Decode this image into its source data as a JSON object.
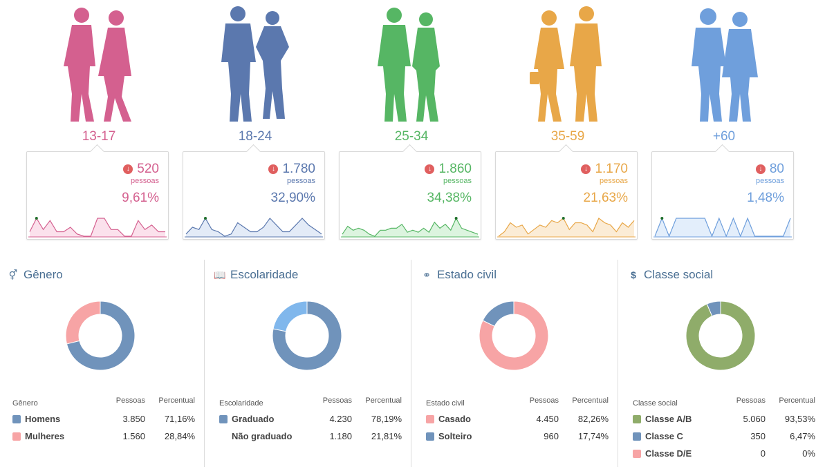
{
  "age_groups": [
    {
      "label": "13-17",
      "count": "520",
      "unit": "pessoas",
      "pct": "9,61%",
      "color": "#d4608f",
      "fill": "#fbe1ec",
      "spark": [
        2,
        8,
        3,
        7,
        2,
        2,
        4,
        1,
        0,
        0,
        8,
        8,
        3,
        3,
        0,
        0,
        7,
        3,
        5,
        2,
        2
      ]
    },
    {
      "label": "18-24",
      "count": "1.780",
      "unit": "pessoas",
      "pct": "32,90%",
      "color": "#5b78ae",
      "fill": "#e3ebf7",
      "spark": [
        1,
        4,
        3,
        8,
        3,
        2,
        0,
        1,
        6,
        4,
        2,
        2,
        4,
        8,
        5,
        2,
        2,
        5,
        8,
        5,
        3,
        1
      ]
    },
    {
      "label": "25-34",
      "count": "1.860",
      "unit": "pessoas",
      "pct": "34,38%",
      "color": "#56b664",
      "fill": "#dcf4df",
      "spark": [
        1,
        5,
        3,
        4,
        3,
        1,
        0,
        3,
        3,
        4,
        4,
        6,
        2,
        3,
        2,
        4,
        2,
        7,
        4,
        6,
        3,
        9,
        4,
        3,
        2,
        1
      ]
    },
    {
      "label": "35-59",
      "count": "1.170",
      "unit": "pessoas",
      "pct": "21,63%",
      "color": "#e8a748",
      "fill": "#fbecd6",
      "spark": [
        0,
        2,
        6,
        4,
        5,
        1,
        3,
        5,
        4,
        7,
        6,
        8,
        3,
        6,
        6,
        5,
        2,
        8,
        6,
        5,
        2,
        6,
        4,
        7
      ]
    },
    {
      "label": "+60",
      "count": "80",
      "unit": "pessoas",
      "pct": "1,48%",
      "color": "#6f9fdc",
      "fill": "#e3eefb",
      "spark": [
        0,
        9,
        0,
        9,
        9,
        9,
        9,
        9,
        0,
        9,
        0,
        9,
        0,
        9,
        0,
        0,
        0,
        0,
        0,
        9
      ]
    }
  ],
  "panels": [
    {
      "title": "Gênero",
      "icon": "gender-icon",
      "icon_glyph": "⚥",
      "col_headers": [
        "Gênero",
        "Pessoas",
        "Percentual"
      ],
      "rows": [
        {
          "label": "Homens",
          "pessoas": "3.850",
          "percentual": "71,16%",
          "value": 71.16,
          "color": "#7093bb"
        },
        {
          "label": "Mulheres",
          "pessoas": "1.560",
          "percentual": "28,84%",
          "value": 28.84,
          "color": "#f7a4a5"
        }
      ]
    },
    {
      "title": "Escolaridade",
      "icon": "book-icon",
      "icon_glyph": "📖",
      "col_headers": [
        "Escolaridade",
        "Pessoas",
        "Percentual"
      ],
      "rows": [
        {
          "label": "Graduado",
          "pessoas": "4.230",
          "percentual": "78,19%",
          "value": 78.19,
          "color": "#7093bb"
        },
        {
          "label": "Não graduado",
          "pessoas": "1.180",
          "percentual": "21,81%",
          "value": 21.81,
          "color": "#80b7ec",
          "noswatch": true
        }
      ]
    },
    {
      "title": "Estado civil",
      "icon": "rings-icon",
      "icon_glyph": "⚭",
      "col_headers": [
        "Estado civil",
        "Pessoas",
        "Percentual"
      ],
      "rows": [
        {
          "label": "Casado",
          "pessoas": "4.450",
          "percentual": "82,26%",
          "value": 82.26,
          "color": "#f7a4a5"
        },
        {
          "label": "Solteiro",
          "pessoas": "960",
          "percentual": "17,74%",
          "value": 17.74,
          "color": "#7093bb"
        }
      ]
    },
    {
      "title": "Classe social",
      "icon": "dollar-icon",
      "icon_glyph": "$",
      "col_headers": [
        "Classe social",
        "Pessoas",
        "Percentual"
      ],
      "rows": [
        {
          "label": "Classe A/B",
          "pessoas": "5.060",
          "percentual": "93,53%",
          "value": 93.53,
          "color": "#8fac6a"
        },
        {
          "label": "Classe C",
          "pessoas": "350",
          "percentual": "6,47%",
          "value": 6.47,
          "color": "#7093bb"
        },
        {
          "label": "Classe D/E",
          "pessoas": "0",
          "percentual": "0%",
          "value": 0,
          "color": "#f7a4a5"
        }
      ]
    }
  ],
  "chart_data": [
    {
      "type": "pie",
      "title": "Gênero",
      "categories": [
        "Homens",
        "Mulheres"
      ],
      "values": [
        71.16,
        28.84
      ]
    },
    {
      "type": "pie",
      "title": "Escolaridade",
      "categories": [
        "Graduado",
        "Não graduado"
      ],
      "values": [
        78.19,
        21.81
      ]
    },
    {
      "type": "pie",
      "title": "Estado civil",
      "categories": [
        "Casado",
        "Solteiro"
      ],
      "values": [
        82.26,
        17.74
      ]
    },
    {
      "type": "pie",
      "title": "Classe social",
      "categories": [
        "Classe A/B",
        "Classe C",
        "Classe D/E"
      ],
      "values": [
        93.53,
        6.47,
        0
      ]
    }
  ]
}
